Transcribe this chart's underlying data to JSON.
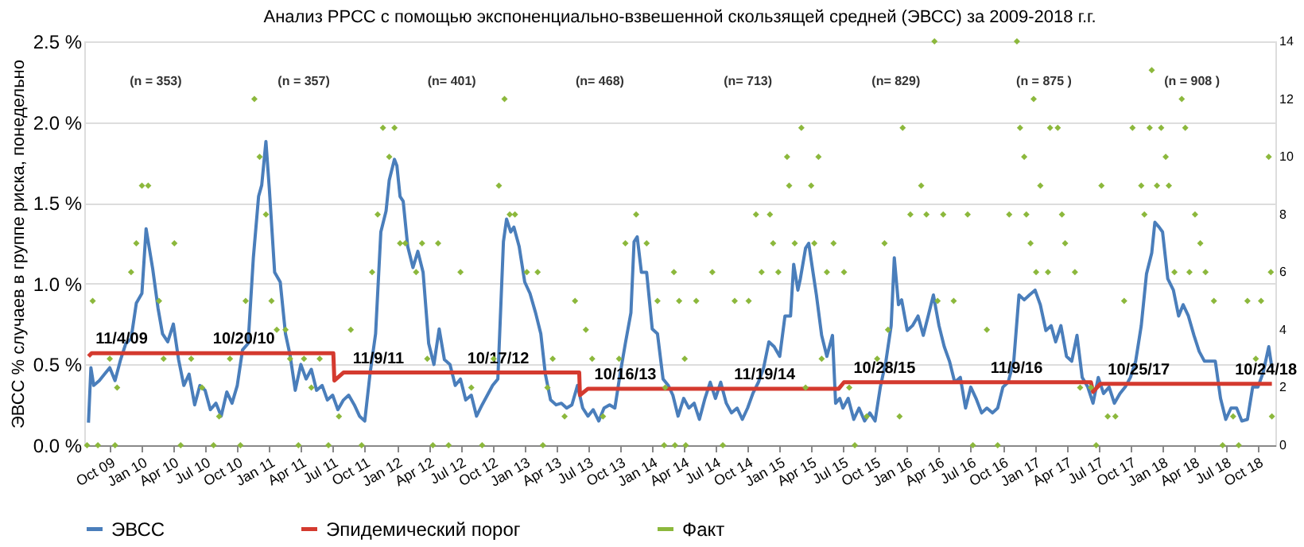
{
  "chart_data": {
    "type": "line",
    "title": "Анализ РРСС с помощью экспоненциально-взвешенной скользящей средней (ЭВСС) за 2009-2018 г.г.",
    "ylabel": "ЭВСС % случаев в группе риска, понедельно",
    "xlim": [
      "2009-07-20",
      "2018-11-20"
    ],
    "xticks": [
      {
        "value": "2009-10-01",
        "label": "Oct 09"
      },
      {
        "value": "2010-01-01",
        "label": "Jan 10"
      },
      {
        "value": "2010-04-01",
        "label": "Apr 10"
      },
      {
        "value": "2010-07-01",
        "label": "Jul 10"
      },
      {
        "value": "2010-10-01",
        "label": "Oct 10"
      },
      {
        "value": "2011-01-01",
        "label": "Jan 11"
      },
      {
        "value": "2011-04-01",
        "label": "Apr 11"
      },
      {
        "value": "2011-07-01",
        "label": "Jul 11"
      },
      {
        "value": "2011-10-01",
        "label": "Oct 11"
      },
      {
        "value": "2012-01-01",
        "label": "Jan 12"
      },
      {
        "value": "2012-04-01",
        "label": "Apr 12"
      },
      {
        "value": "2012-07-01",
        "label": "Jul 12"
      },
      {
        "value": "2012-10-01",
        "label": "Oct 12"
      },
      {
        "value": "2013-01-01",
        "label": "Jan 13"
      },
      {
        "value": "2013-04-01",
        "label": "Apr 13"
      },
      {
        "value": "2013-07-01",
        "label": "Jul 13"
      },
      {
        "value": "2013-10-01",
        "label": "Oct 13"
      },
      {
        "value": "2014-01-01",
        "label": "Jan 14"
      },
      {
        "value": "2014-04-01",
        "label": "Apr 14"
      },
      {
        "value": "2014-07-01",
        "label": "Jul 14"
      },
      {
        "value": "2014-10-01",
        "label": "Oct 14"
      },
      {
        "value": "2015-01-01",
        "label": "Jan 15"
      },
      {
        "value": "2015-04-01",
        "label": "Apr 15"
      },
      {
        "value": "2015-07-01",
        "label": "Jul 15"
      },
      {
        "value": "2015-10-01",
        "label": "Oct 15"
      },
      {
        "value": "2016-01-01",
        "label": "Jan 16"
      },
      {
        "value": "2016-04-01",
        "label": "Apr 16"
      },
      {
        "value": "2016-07-01",
        "label": "Jul 16"
      },
      {
        "value": "2016-10-01",
        "label": "Oct 16"
      },
      {
        "value": "2017-01-01",
        "label": "Jan 17"
      },
      {
        "value": "2017-04-01",
        "label": "Apr 17"
      },
      {
        "value": "2017-07-01",
        "label": "Jul 17"
      },
      {
        "value": "2017-10-01",
        "label": "Oct 17"
      },
      {
        "value": "2018-01-01",
        "label": "Jan 18"
      },
      {
        "value": "2018-04-01",
        "label": "Apr 18"
      },
      {
        "value": "2018-07-01",
        "label": "Jul 18"
      },
      {
        "value": "2018-10-01",
        "label": "Oct 18"
      }
    ],
    "ylim": [
      0,
      2.5
    ],
    "yticks": [
      {
        "value": 0,
        "label": "0.0 %"
      },
      {
        "value": 0.5,
        "label": "0.5 %"
      },
      {
        "value": 1,
        "label": "1.0 %"
      },
      {
        "value": 1.5,
        "label": "1.5 %"
      },
      {
        "value": 2,
        "label": "2.0 %"
      },
      {
        "value": 2.5,
        "label": "2.5 %"
      }
    ],
    "y2lim": [
      0,
      14
    ],
    "y2ticks": [
      0,
      2,
      4,
      6,
      8,
      10,
      12,
      14
    ],
    "grid": "y",
    "legend": "bottom",
    "series": [
      {
        "name": "ЭВСС",
        "type": "line",
        "line_style": "solid",
        "color": "#4a7ebb",
        "x": [
          "2009-08-01",
          "2009-08-08",
          "2009-08-16",
          "2009-09-01",
          "2009-09-16",
          "2009-10-01",
          "2009-10-16",
          "2009-11-01",
          "2009-11-16",
          "2009-12-01",
          "2009-12-16",
          "2010-01-01",
          "2010-01-13",
          "2010-02-01",
          "2010-02-16",
          "2010-03-01",
          "2010-03-16",
          "2010-04-01",
          "2010-04-16",
          "2010-05-01",
          "2010-05-16",
          "2010-06-01",
          "2010-06-16",
          "2010-07-01",
          "2010-07-16",
          "2010-08-01",
          "2010-08-16",
          "2010-09-01",
          "2010-09-16",
          "2010-10-01",
          "2010-10-16",
          "2010-11-01",
          "2010-11-16",
          "2010-12-01",
          "2010-12-10",
          "2010-12-22",
          "2011-01-01",
          "2011-01-16",
          "2011-02-01",
          "2011-02-16",
          "2011-03-01",
          "2011-03-16",
          "2011-04-01",
          "2011-04-16",
          "2011-05-01",
          "2011-05-16",
          "2011-06-01",
          "2011-06-16",
          "2011-07-01",
          "2011-07-16",
          "2011-08-01",
          "2011-08-16",
          "2011-09-01",
          "2011-09-16",
          "2011-10-01",
          "2011-10-16",
          "2011-11-01",
          "2011-11-16",
          "2011-12-01",
          "2011-12-10",
          "2011-12-25",
          "2012-01-01",
          "2012-01-10",
          "2012-01-19",
          "2012-02-01",
          "2012-02-16",
          "2012-03-01",
          "2012-03-16",
          "2012-04-01",
          "2012-04-16",
          "2012-05-01",
          "2012-05-16",
          "2012-06-01",
          "2012-06-16",
          "2012-07-01",
          "2012-07-16",
          "2012-08-01",
          "2012-08-16",
          "2012-09-01",
          "2012-09-16",
          "2012-10-01",
          "2012-10-16",
          "2012-11-01",
          "2012-11-10",
          "2012-11-22",
          "2012-12-01",
          "2012-12-16",
          "2013-01-01",
          "2013-01-16",
          "2013-02-01",
          "2013-02-16",
          "2013-03-01",
          "2013-03-16",
          "2013-04-01",
          "2013-04-16",
          "2013-05-01",
          "2013-05-16",
          "2013-06-01",
          "2013-06-16",
          "2013-07-01",
          "2013-07-16",
          "2013-08-01",
          "2013-08-16",
          "2013-09-01",
          "2013-09-16",
          "2013-10-01",
          "2013-10-16",
          "2013-11-01",
          "2013-11-10",
          "2013-11-19",
          "2013-12-01",
          "2013-12-16",
          "2014-01-01",
          "2014-01-16",
          "2014-02-01",
          "2014-02-16",
          "2014-03-01",
          "2014-03-16",
          "2014-04-01",
          "2014-04-16",
          "2014-05-01",
          "2014-05-16",
          "2014-06-01",
          "2014-06-16",
          "2014-07-01",
          "2014-07-16",
          "2014-08-01",
          "2014-08-16",
          "2014-09-01",
          "2014-09-16",
          "2014-10-01",
          "2014-10-16",
          "2014-11-01",
          "2014-11-16",
          "2014-12-01",
          "2014-12-16",
          "2015-01-01",
          "2015-01-16",
          "2015-02-01",
          "2015-02-10",
          "2015-02-22",
          "2015-03-01",
          "2015-03-16",
          "2015-03-25",
          "2015-04-07",
          "2015-04-16",
          "2015-05-01",
          "2015-05-16",
          "2015-06-01",
          "2015-06-10",
          "2015-06-22",
          "2015-07-01",
          "2015-07-16",
          "2015-08-01",
          "2015-08-16",
          "2015-09-01",
          "2015-09-16",
          "2015-10-01",
          "2015-10-16",
          "2015-11-01",
          "2015-11-16",
          "2015-11-25",
          "2015-12-07",
          "2015-12-16",
          "2016-01-01",
          "2016-01-16",
          "2016-02-01",
          "2016-02-16",
          "2016-03-01",
          "2016-03-16",
          "2016-04-01",
          "2016-04-16",
          "2016-05-01",
          "2016-05-16",
          "2016-06-01",
          "2016-06-16",
          "2016-07-01",
          "2016-07-16",
          "2016-08-01",
          "2016-08-16",
          "2016-09-01",
          "2016-09-16",
          "2016-10-01",
          "2016-10-16",
          "2016-11-01",
          "2016-11-16",
          "2016-12-01",
          "2016-12-16",
          "2017-01-01",
          "2017-01-16",
          "2017-02-01",
          "2017-02-16",
          "2017-03-01",
          "2017-03-16",
          "2017-04-01",
          "2017-04-16",
          "2017-05-01",
          "2017-05-16",
          "2017-06-01",
          "2017-06-16",
          "2017-07-01",
          "2017-07-16",
          "2017-08-01",
          "2017-08-16",
          "2017-09-01",
          "2017-09-16",
          "2017-10-01",
          "2017-10-16",
          "2017-11-01",
          "2017-11-16",
          "2017-12-01",
          "2017-12-10",
          "2017-12-22",
          "2018-01-01",
          "2018-01-16",
          "2018-02-01",
          "2018-02-16",
          "2018-03-01",
          "2018-03-16",
          "2018-04-01",
          "2018-04-16",
          "2018-05-01",
          "2018-05-16",
          "2018-06-01",
          "2018-06-16",
          "2018-07-01",
          "2018-07-16",
          "2018-08-01",
          "2018-08-16",
          "2018-09-01",
          "2018-09-16",
          "2018-10-01",
          "2018-10-16",
          "2018-11-01",
          "2018-11-10"
        ],
        "values": [
          0.14,
          0.48,
          0.37,
          0.4,
          0.44,
          0.48,
          0.4,
          0.53,
          0.63,
          0.66,
          0.88,
          0.94,
          1.34,
          1.09,
          0.85,
          0.69,
          0.64,
          0.75,
          0.53,
          0.37,
          0.44,
          0.25,
          0.37,
          0.34,
          0.22,
          0.26,
          0.18,
          0.33,
          0.26,
          0.37,
          0.59,
          0.63,
          1.16,
          1.54,
          1.61,
          1.88,
          1.58,
          1.07,
          1.01,
          0.69,
          0.56,
          0.34,
          0.5,
          0.41,
          0.47,
          0.34,
          0.37,
          0.28,
          0.31,
          0.22,
          0.28,
          0.31,
          0.25,
          0.18,
          0.15,
          0.44,
          0.69,
          1.32,
          1.45,
          1.64,
          1.77,
          1.73,
          1.54,
          1.51,
          1.23,
          1.1,
          1.2,
          1.07,
          0.63,
          0.5,
          0.72,
          0.53,
          0.5,
          0.37,
          0.41,
          0.28,
          0.31,
          0.18,
          0.25,
          0.31,
          0.37,
          0.41,
          1.26,
          1.4,
          1.32,
          1.35,
          1.23,
          1.01,
          0.94,
          0.82,
          0.69,
          0.44,
          0.28,
          0.25,
          0.26,
          0.23,
          0.25,
          0.37,
          0.23,
          0.18,
          0.22,
          0.15,
          0.23,
          0.25,
          0.23,
          0.44,
          0.63,
          0.82,
          1.26,
          1.29,
          1.07,
          1.07,
          0.72,
          0.69,
          0.41,
          0.37,
          0.31,
          0.18,
          0.29,
          0.23,
          0.26,
          0.16,
          0.29,
          0.39,
          0.29,
          0.39,
          0.26,
          0.2,
          0.23,
          0.16,
          0.23,
          0.32,
          0.39,
          0.48,
          0.64,
          0.61,
          0.55,
          0.8,
          0.8,
          1.12,
          0.96,
          1.03,
          1.22,
          1.25,
          1.06,
          0.93,
          0.68,
          0.55,
          0.68,
          0.26,
          0.29,
          0.23,
          0.29,
          0.16,
          0.23,
          0.15,
          0.2,
          0.15,
          0.36,
          0.52,
          0.74,
          1.16,
          0.87,
          0.9,
          0.71,
          0.74,
          0.8,
          0.68,
          0.8,
          0.93,
          0.74,
          0.61,
          0.52,
          0.39,
          0.42,
          0.23,
          0.36,
          0.29,
          0.2,
          0.23,
          0.2,
          0.23,
          0.36,
          0.39,
          0.52,
          0.93,
          0.9,
          0.93,
          0.96,
          0.87,
          0.71,
          0.74,
          0.64,
          0.74,
          0.55,
          0.52,
          0.68,
          0.42,
          0.36,
          0.26,
          0.42,
          0.32,
          0.36,
          0.26,
          0.32,
          0.36,
          0.42,
          0.52,
          0.74,
          1.06,
          1.19,
          1.38,
          1.35,
          1.32,
          1.03,
          0.96,
          0.8,
          0.87,
          0.8,
          0.68,
          0.58,
          0.52,
          0.52,
          0.52,
          0.29,
          0.16,
          0.23,
          0.23,
          0.15,
          0.16,
          0.36,
          0.36,
          0.45,
          0.61,
          0.48
        ]
      },
      {
        "name": "Эпидемический порог",
        "type": "line",
        "line_style": "solid",
        "color": "#d43a2f",
        "x": [
          "2009-08-01",
          "2009-08-10",
          "2011-07-03",
          "2011-07-06",
          "2011-08-01",
          "2013-06-06",
          "2013-06-08",
          "2013-07-01",
          "2015-06-19",
          "2015-07-04",
          "2017-06-10",
          "2017-06-16",
          "2017-07-07",
          "2018-11-10"
        ],
        "values": [
          0.55,
          0.57,
          0.57,
          0.4,
          0.45,
          0.45,
          0.31,
          0.35,
          0.35,
          0.39,
          0.39,
          0.33,
          0.38,
          0.38
        ]
      },
      {
        "name": "Факт",
        "type": "scatter",
        "axis": "y2",
        "marker": "diamond",
        "color": "#8cb83c",
        "x": [
          "2009-07-28",
          "2009-08-28",
          "2009-10-16",
          "2009-08-13",
          "2009-10-01",
          "2009-10-22",
          "2009-12-01",
          "2009-12-16",
          "2010-01-01",
          "2010-01-19",
          "2010-02-19",
          "2010-03-04",
          "2010-04-04",
          "2010-04-22",
          "2010-05-22",
          "2010-06-22",
          "2010-07-25",
          "2010-08-10",
          "2010-09-10",
          "2010-10-10",
          "2010-10-25",
          "2010-11-19",
          "2010-12-04",
          "2010-12-22",
          "2011-01-07",
          "2011-01-22",
          "2011-02-16",
          "2011-03-01",
          "2011-03-25",
          "2011-04-10",
          "2011-05-01",
          "2011-05-25",
          "2011-06-19",
          "2011-07-19",
          "2011-08-22",
          "2011-09-22",
          "2011-10-22",
          "2011-11-07",
          "2011-11-22",
          "2011-12-10",
          "2011-12-25",
          "2012-01-10",
          "2012-01-25",
          "2012-02-25",
          "2012-03-13",
          "2012-03-28",
          "2012-04-13",
          "2012-04-28",
          "2012-05-28",
          "2012-07-01",
          "2012-08-01",
          "2012-09-01",
          "2012-10-04",
          "2012-10-19",
          "2012-11-04",
          "2012-11-19",
          "2012-12-04",
          "2013-01-07",
          "2013-02-07",
          "2013-02-22",
          "2013-03-07",
          "2013-03-22",
          "2013-04-25",
          "2013-05-25",
          "2013-06-25",
          "2013-07-13",
          "2013-08-13",
          "2013-09-28",
          "2013-10-16",
          "2013-11-16",
          "2013-12-16",
          "2014-01-16",
          "2014-02-04",
          "2014-03-04",
          "2014-04-04",
          "2014-02-07",
          "2014-03-07",
          "2014-04-07",
          "2014-03-19",
          "2014-05-07",
          "2014-06-22",
          "2014-07-22",
          "2014-08-25",
          "2014-10-04",
          "2014-10-25",
          "2014-11-10",
          "2014-12-04",
          "2014-12-13",
          "2014-12-28",
          "2015-01-22",
          "2015-01-28",
          "2015-02-13",
          "2015-03-04",
          "2015-03-16",
          "2015-04-01",
          "2015-04-22",
          "2015-04-10",
          "2015-05-01",
          "2015-05-16",
          "2015-06-04",
          "2015-07-04",
          "2015-07-19",
          "2015-08-04",
          "2015-09-07",
          "2015-10-07",
          "2015-10-28",
          "2015-11-07",
          "2015-12-10",
          "2015-12-19",
          "2016-01-10",
          "2016-02-10",
          "2016-02-25",
          "2016-03-19",
          "2016-03-28",
          "2016-04-13",
          "2016-05-13",
          "2016-06-22",
          "2016-07-07",
          "2016-08-16",
          "2016-09-16",
          "2016-10-19",
          "2016-11-10",
          "2016-11-19",
          "2016-12-01",
          "2016-12-07",
          "2016-12-19",
          "2016-12-28",
          "2017-01-04",
          "2017-01-16",
          "2017-02-07",
          "2017-02-13",
          "2017-03-07",
          "2017-03-19",
          "2017-03-28",
          "2017-04-25",
          "2017-05-10",
          "2017-06-10",
          "2017-06-25",
          "2017-07-10",
          "2017-07-28",
          "2017-08-19",
          "2017-09-13",
          "2017-10-07",
          "2017-11-01",
          "2017-11-10",
          "2017-11-25",
          "2017-12-01",
          "2017-12-16",
          "2017-12-28",
          "2018-01-10",
          "2018-01-19",
          "2018-02-04",
          "2018-02-25",
          "2018-03-07",
          "2018-03-19",
          "2018-04-04",
          "2018-04-19",
          "2018-05-04",
          "2018-05-28",
          "2018-06-22",
          "2018-07-22",
          "2018-08-07",
          "2018-09-01",
          "2018-09-25",
          "2018-10-10",
          "2018-11-01",
          "2018-11-07",
          "2018-11-10"
        ],
        "values": [
          0,
          0,
          0,
          5,
          3,
          2,
          6,
          7,
          9,
          9,
          5,
          3,
          7,
          0,
          3,
          2,
          0,
          1,
          3,
          0,
          5,
          12,
          10,
          8,
          5,
          4,
          4,
          3,
          0,
          3,
          2,
          3,
          0,
          1,
          4,
          0,
          6,
          8,
          11,
          10,
          11,
          7,
          7,
          6,
          7,
          3,
          0,
          7,
          0,
          6,
          2,
          0,
          3,
          9,
          12,
          8,
          8,
          6,
          6,
          0,
          2,
          3,
          1,
          5,
          4,
          3,
          1,
          3,
          7,
          8,
          7,
          5,
          0,
          6,
          3,
          2,
          0,
          0,
          5,
          5,
          6,
          0,
          5,
          5,
          8,
          6,
          8,
          7,
          6,
          10,
          9,
          7,
          11,
          2,
          9,
          10,
          7,
          3,
          6,
          7,
          6,
          2,
          0,
          1,
          3,
          7,
          4,
          1,
          11,
          8,
          9,
          8,
          14,
          5,
          8,
          5,
          8,
          0,
          4,
          0,
          8,
          14,
          11,
          10,
          8,
          7,
          12,
          6,
          9,
          6,
          11,
          11,
          8,
          7,
          6,
          2,
          2,
          0,
          9,
          1,
          1,
          5,
          11,
          9,
          8,
          11,
          13,
          9,
          11,
          10,
          9,
          6,
          12,
          11,
          6,
          8,
          7,
          6,
          5,
          0,
          1,
          0,
          5,
          3,
          5,
          10,
          6,
          1
        ]
      }
    ],
    "annotations": [
      "(n = 353)",
      "(n = 357)",
      "(n= 401)",
      "(n= 468)",
      "(n= 713)",
      "(n= 829)",
      "(n = 875 )",
      "(n = 908 )",
      {
        "text": "11/4/09",
        "x": "2009-11-04",
        "y": 0.57
      },
      {
        "text": "10/20/10",
        "x": "2010-10-20",
        "y": 0.57
      },
      {
        "text": "11/9/11",
        "x": "2011-11-09",
        "y": 0.45
      },
      {
        "text": "10/17/12",
        "x": "2012-10-17",
        "y": 0.45
      },
      {
        "text": "10/16/13",
        "x": "2013-10-16",
        "y": 0.35
      },
      {
        "text": "11/19/14",
        "x": "2014-11-19",
        "y": 0.35
      },
      {
        "text": "10/28/15",
        "x": "2015-10-28",
        "y": 0.39
      },
      {
        "text": "11/9/16",
        "x": "2016-11-09",
        "y": 0.39
      },
      {
        "text": "10/25/17",
        "x": "2017-10-25",
        "y": 0.38
      },
      {
        "text": "10/24/18",
        "x": "2018-10-24",
        "y": 0.38
      }
    ]
  }
}
